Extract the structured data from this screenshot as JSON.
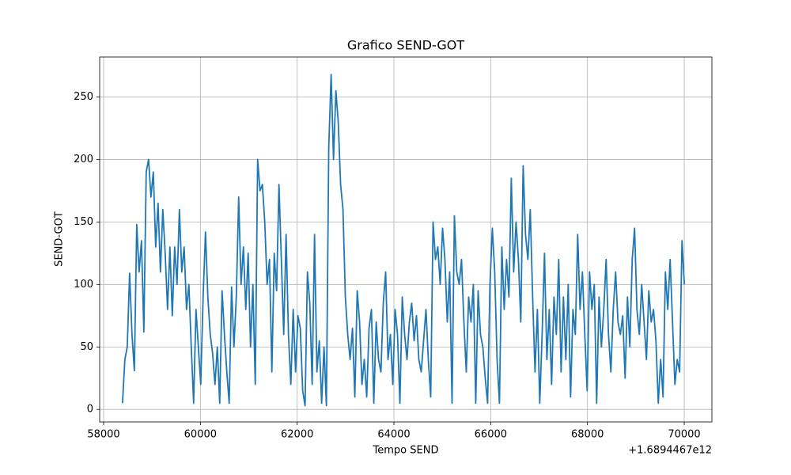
{
  "chart_data": {
    "type": "line",
    "title": "Grafico SEND-GOT",
    "x_label": "Tempo SEND",
    "y_label": "SEND-GOT",
    "x_offset_text": "+1.6894467e12",
    "x": [
      58390,
      58439,
      58488,
      58537,
      58586,
      58635,
      58684,
      58733,
      58782,
      58831,
      58880,
      58929,
      58978,
      59027,
      59076,
      59125,
      59174,
      59223,
      59272,
      59321,
      59370,
      59419,
      59468,
      59517,
      59566,
      59615,
      59664,
      59713,
      59762,
      59811,
      59860,
      59909,
      59958,
      60007,
      60056,
      60105,
      60154,
      60203,
      60252,
      60301,
      60350,
      60399,
      60448,
      60497,
      60546,
      60595,
      60644,
      60693,
      60742,
      60791,
      60840,
      60889,
      60938,
      60987,
      61036,
      61085,
      61134,
      61183,
      61232,
      61281,
      61330,
      61379,
      61428,
      61477,
      61526,
      61575,
      61624,
      61673,
      61722,
      61771,
      61820,
      61869,
      61918,
      61967,
      62016,
      62065,
      62114,
      62163,
      62212,
      62261,
      62310,
      62359,
      62408,
      62457,
      62506,
      62555,
      62604,
      62653,
      62702,
      62751,
      62800,
      62849,
      62898,
      62947,
      62996,
      63045,
      63094,
      63143,
      63192,
      63241,
      63290,
      63339,
      63388,
      63437,
      63486,
      63535,
      63584,
      63633,
      63682,
      63731,
      63780,
      63829,
      63878,
      63927,
      63976,
      64025,
      64074,
      64123,
      64172,
      64221,
      64270,
      64319,
      64368,
      64417,
      64466,
      64515,
      64564,
      64613,
      64662,
      64711,
      64760,
      64809,
      64858,
      64907,
      64956,
      65005,
      65054,
      65103,
      65152,
      65201,
      65250,
      65299,
      65348,
      65397,
      65446,
      65495,
      65544,
      65593,
      65642,
      65691,
      65740,
      65789,
      65838,
      65887,
      65936,
      65985,
      66034,
      66083,
      66132,
      66181,
      66230,
      66279,
      66328,
      66377,
      66426,
      66475,
      66524,
      66573,
      66622,
      66671,
      66720,
      66769,
      66818,
      66867,
      66916,
      66965,
      67014,
      67063,
      67112,
      67161,
      67210,
      67259,
      67308,
      67357,
      67406,
      67455,
      67504,
      67553,
      67602,
      67651,
      67700,
      67749,
      67798,
      67847,
      67896,
      67945,
      67994,
      68043,
      68092,
      68141,
      68190,
      68239,
      68288,
      68337,
      68386,
      68435,
      68484,
      68533,
      68582,
      68631,
      68680,
      68729,
      68778,
      68827,
      68876,
      68925,
      68974,
      69023,
      69072,
      69121,
      69170,
      69219,
      69268,
      69317,
      69366,
      69415,
      69464,
      69513,
      69562,
      69611,
      69660,
      69709,
      69758,
      69807,
      69856,
      69905,
      69954,
      70003
    ],
    "series": [
      {
        "name": "SEND-GOT",
        "color": "#1f77b4",
        "values": [
          5,
          40,
          50,
          109,
          60,
          31,
          148,
          110,
          135,
          62,
          190,
          200,
          170,
          190,
          130,
          165,
          110,
          160,
          125,
          80,
          130,
          75,
          130,
          100,
          160,
          110,
          130,
          80,
          100,
          50,
          5,
          80,
          50,
          20,
          90,
          142,
          90,
          60,
          45,
          20,
          50,
          5,
          95,
          60,
          30,
          5,
          98,
          50,
          90,
          170,
          100,
          130,
          80,
          125,
          50,
          100,
          20,
          200,
          175,
          180,
          150,
          100,
          120,
          30,
          125,
          95,
          180,
          120,
          60,
          140,
          60,
          20,
          80,
          30,
          75,
          65,
          15,
          3,
          110,
          85,
          20,
          140,
          30,
          55,
          5,
          50,
          3,
          210,
          268,
          200,
          255,
          230,
          180,
          160,
          90,
          60,
          40,
          65,
          10,
          95,
          70,
          20,
          40,
          10,
          65,
          80,
          5,
          70,
          40,
          30,
          85,
          110,
          40,
          60,
          20,
          80,
          60,
          5,
          90,
          60,
          40,
          70,
          85,
          55,
          75,
          40,
          30,
          55,
          80,
          40,
          10,
          150,
          120,
          130,
          100,
          145,
          120,
          70,
          110,
          5,
          155,
          110,
          100,
          120,
          70,
          30,
          90,
          70,
          100,
          5,
          95,
          60,
          50,
          25,
          5,
          100,
          145,
          110,
          40,
          5,
          130,
          80,
          120,
          90,
          185,
          110,
          150,
          120,
          70,
          195,
          140,
          120,
          160,
          90,
          30,
          80,
          5,
          60,
          125,
          40,
          80,
          20,
          90,
          60,
          120,
          30,
          90,
          40,
          100,
          10,
          80,
          60,
          140,
          80,
          110,
          60,
          15,
          110,
          80,
          100,
          5,
          90,
          50,
          80,
          120,
          60,
          30,
          80,
          110,
          70,
          60,
          75,
          25,
          90,
          50,
          120,
          145,
          80,
          60,
          100,
          70,
          40,
          95,
          70,
          80,
          55,
          5,
          40,
          10,
          110,
          80,
          120,
          70,
          20,
          40,
          30,
          135,
          100
        ]
      }
    ],
    "xlim": [
      57918,
      70572
    ],
    "ylim": [
      -10,
      282
    ],
    "xticks": [
      58000,
      60000,
      62000,
      64000,
      66000,
      68000,
      70000
    ],
    "yticks": [
      0,
      50,
      100,
      150,
      200,
      250
    ],
    "grid": true
  }
}
